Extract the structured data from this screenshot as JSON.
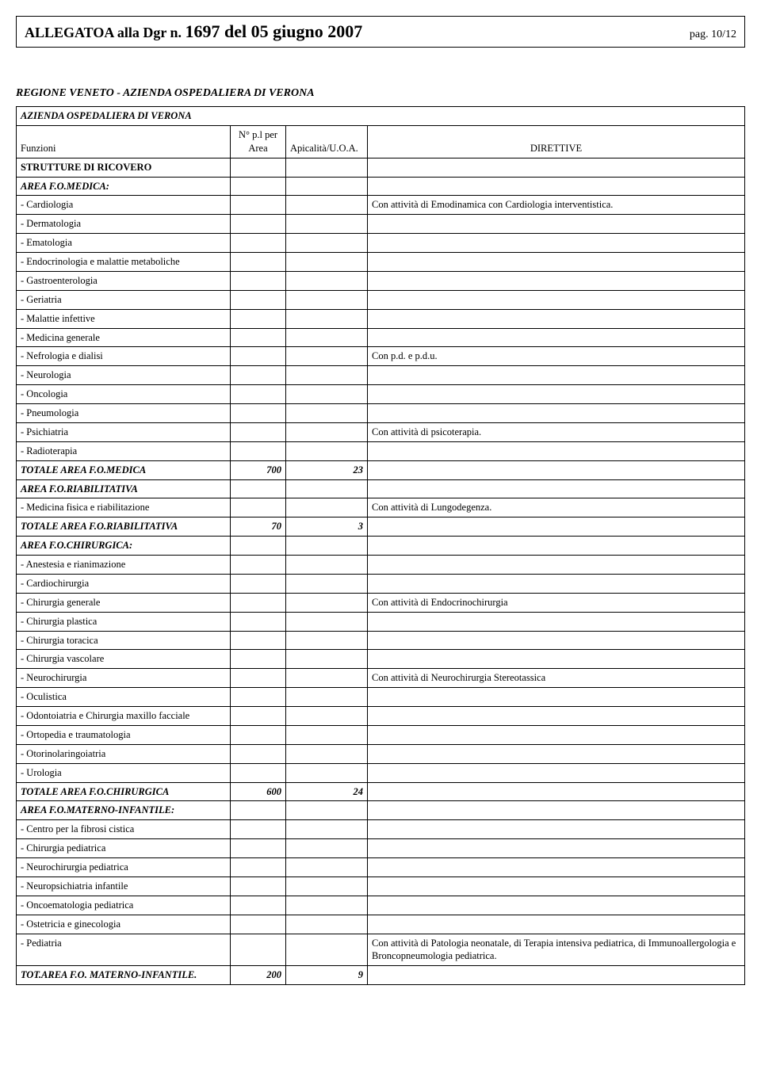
{
  "header": {
    "prefix": "ALLEGATOA alla Dgr n.",
    "number": "1697 del 05 giugno 2007",
    "page": "pag. 10/12"
  },
  "region_title": "REGIONE VENETO - AZIENDA OSPEDALIERA DI VERONA",
  "table_header": {
    "azienda": "AZIENDA OSPEDALIERA DI VERONA",
    "funzioni": "Funzioni",
    "npl": "N° p.l per Area",
    "apicalita": "Apicalità/U.O.A.",
    "direttive": "DIRETTIVE"
  },
  "sections": {
    "strutture": "STRUTTURE DI RICOVERO",
    "medica_label": "AREA F.O.MEDICA:",
    "riab_label": "AREA F.O.RIABILITATIVA",
    "chir_label": "AREA F.O.CHIRURGICA:",
    "mat_label": "AREA F.O.MATERNO-INFANTILE:"
  },
  "medica_rows": [
    {
      "l": "- Cardiologia",
      "d": "Con attività di Emodinamica con Cardiologia interventistica."
    },
    {
      "l": "- Dermatologia",
      "d": ""
    },
    {
      "l": "- Ematologia",
      "d": ""
    },
    {
      "l": "- Endocrinologia e malattie metaboliche",
      "d": ""
    },
    {
      "l": "- Gastroenterologia",
      "d": ""
    },
    {
      "l": "- Geriatria",
      "d": ""
    },
    {
      "l": "- Malattie infettive",
      "d": ""
    },
    {
      "l": "- Medicina generale",
      "d": ""
    },
    {
      "l": "- Nefrologia e dialisi",
      "d": "Con  p.d. e p.d.u."
    },
    {
      "l": "- Neurologia",
      "d": ""
    },
    {
      "l": "- Oncologia",
      "d": ""
    },
    {
      "l": "- Pneumologia",
      "d": ""
    },
    {
      "l": "- Psichiatria",
      "d": "Con attività di psicoterapia."
    },
    {
      "l": "- Radioterapia",
      "d": ""
    }
  ],
  "medica_total": {
    "label": "TOTALE AREA F.O.MEDICA",
    "n": "700",
    "a": "23"
  },
  "riab_rows": [
    {
      "l": "- Medicina fisica e riabilitazione",
      "d": "Con attività di Lungodegenza."
    }
  ],
  "riab_total": {
    "label": "TOTALE AREA F.O.RIABILITATIVA",
    "n": "70",
    "a": "3"
  },
  "chir_rows": [
    {
      "l": "- Anestesia e rianimazione",
      "d": ""
    },
    {
      "l": "- Cardiochirurgia",
      "d": ""
    },
    {
      "l": "- Chirurgia generale",
      "d": " Con attività di Endocrinochirurgia"
    },
    {
      "l": "- Chirurgia plastica",
      "d": ""
    },
    {
      "l": "- Chirurgia toracica",
      "d": ""
    },
    {
      "l": "- Chirurgia vascolare",
      "d": ""
    },
    {
      "l": "- Neurochirurgia",
      "d": " Con attività di Neurochirurgia Stereotassica"
    },
    {
      "l": "- Oculistica",
      "d": ""
    },
    {
      "l": "- Odontoiatria e Chirurgia maxillo facciale",
      "d": ""
    },
    {
      "l": "- Ortopedia e traumatologia",
      "d": ""
    },
    {
      "l": "- Otorinolaringoiatria",
      "d": ""
    },
    {
      "l": "- Urologia",
      "d": ""
    }
  ],
  "chir_total": {
    "label": "TOTALE AREA F.O.CHIRURGICA",
    "n": "600",
    "a": "24"
  },
  "mat_rows": [
    {
      "l": "- Centro per la fibrosi cistica",
      "d": ""
    },
    {
      "l": "- Chirurgia pediatrica",
      "d": ""
    },
    {
      "l": "- Neurochirurgia pediatrica",
      "d": ""
    },
    {
      "l": "- Neuropsichiatria infantile",
      "d": ""
    },
    {
      "l": "- Oncoematologia pediatrica",
      "d": ""
    },
    {
      "l": "- Ostetricia e ginecologia",
      "d": ""
    },
    {
      "l": "- Pediatria",
      "d": "Con attività di Patologia neonatale, di Terapia intensiva pediatrica, di Immunoallergologia e Broncopneumologia pediatrica."
    }
  ],
  "mat_total": {
    "label": "TOT.AREA F.O. MATERNO-INFANTILE.",
    "n": "200",
    "a": "9"
  }
}
